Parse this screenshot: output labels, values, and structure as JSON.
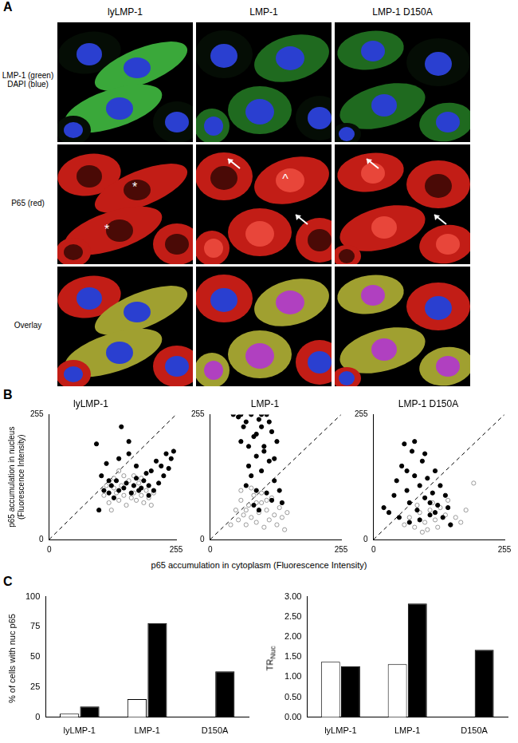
{
  "panel_labels": [
    "A",
    "B",
    "C"
  ],
  "image_panel": {
    "columns": [
      "lyLMP-1",
      "LMP-1",
      "LMP-1 D150A"
    ],
    "rows": [
      [
        "LMP-1 (green)",
        "DAPI (blue)"
      ],
      [
        "P65 (red)"
      ],
      [
        "Overlay"
      ]
    ],
    "annotations": [
      {
        "row": 1,
        "column": 0,
        "text": "*"
      },
      {
        "row": 1,
        "column": 0,
        "text": "*"
      },
      {
        "row": 1,
        "column": 1,
        "text": "^"
      }
    ]
  },
  "chart_data": [
    {
      "type": "scatter",
      "title": "lyLMP-1",
      "ylabel": [
        "p65 accumulation in nucleus",
        "(Fluorescence Intensity)"
      ],
      "xlim": [
        0,
        255
      ],
      "ylim": [
        0,
        255
      ],
      "xticks": [
        0,
        255
      ],
      "yticks": [
        0,
        255
      ],
      "grid": false,
      "series": [
        {
          "color": "#000000",
          "marker": "filled_circle",
          "x": [
            95,
            100,
            105,
            115,
            120,
            125,
            130,
            135,
            140,
            145,
            150,
            155,
            160,
            165,
            170,
            175,
            180,
            185,
            190,
            195,
            200,
            205,
            210,
            215,
            220,
            225,
            230,
            235,
            240,
            245,
            250,
            160,
            140,
            175,
            200,
            120,
            110
          ],
          "y": [
            195,
            60,
            130,
            155,
            95,
            110,
            85,
            120,
            100,
            230,
            105,
            115,
            200,
            95,
            110,
            125,
            100,
            105,
            120,
            135,
            110,
            140,
            100,
            160,
            115,
            150,
            130,
            175,
            145,
            165,
            180,
            175,
            165,
            150,
            90,
            120,
            100
          ]
        },
        {
          "color": "#999999",
          "marker": "open_circle",
          "x": [
            110,
            120,
            130,
            135,
            140,
            145,
            150,
            155,
            160,
            165,
            170,
            175,
            180,
            185,
            190,
            195,
            200,
            205,
            210,
            130,
            150,
            115,
            170,
            140,
            185,
            125
          ],
          "y": [
            90,
            75,
            105,
            95,
            80,
            110,
            90,
            70,
            120,
            85,
            95,
            80,
            115,
            90,
            75,
            100,
            85,
            70,
            95,
            125,
            130,
            110,
            130,
            140,
            125,
            60
          ]
        },
        {
          "type": "line",
          "line_style": "dashed",
          "color": "#000000",
          "x": [
            0,
            255
          ],
          "y": [
            0,
            255
          ]
        }
      ]
    },
    {
      "type": "scatter",
      "title": "LMP-1",
      "xlabel": "p65 accumulation in cytoplasm (Fluorescence Intensity)",
      "xlim": [
        0,
        255
      ],
      "ylim": [
        0,
        255
      ],
      "xticks": [
        0,
        255
      ],
      "yticks": [
        0,
        255
      ],
      "grid": false,
      "series": [
        {
          "color": "#000000",
          "marker": "filled_circle",
          "x": [
            45,
            55,
            60,
            70,
            75,
            80,
            85,
            90,
            95,
            100,
            105,
            110,
            115,
            120,
            125,
            130,
            70,
            80,
            90,
            100,
            110,
            120,
            85,
            95,
            105,
            75,
            65,
            115,
            125,
            135,
            140,
            60,
            100,
            90
          ],
          "y": [
            255,
            250,
            200,
            240,
            150,
            255,
            210,
            170,
            245,
            230,
            190,
            255,
            160,
            220,
            120,
            200,
            110,
            130,
            100,
            140,
            95,
            80,
            70,
            60,
            180,
            190,
            230,
            240,
            165,
            100,
            75,
            255,
            255,
            215
          ]
        },
        {
          "color": "#999999",
          "marker": "open_circle",
          "x": [
            40,
            50,
            55,
            60,
            65,
            70,
            75,
            80,
            85,
            90,
            95,
            100,
            105,
            110,
            115,
            120,
            125,
            130,
            135,
            140,
            145,
            150,
            60,
            80,
            100,
            70,
            90,
            110
          ],
          "y": [
            30,
            60,
            40,
            80,
            50,
            30,
            70,
            45,
            90,
            35,
            55,
            75,
            25,
            60,
            40,
            85,
            50,
            30,
            65,
            45,
            20,
            55,
            100,
            105,
            95,
            60,
            75,
            80
          ]
        },
        {
          "type": "line",
          "line_style": "dashed",
          "color": "#000000",
          "x": [
            0,
            255
          ],
          "y": [
            0,
            255
          ]
        }
      ]
    },
    {
      "type": "scatter",
      "title": "LMP-1 D150A",
      "xlim": [
        0,
        255
      ],
      "ylim": [
        0,
        255
      ],
      "xticks": [
        0,
        255
      ],
      "yticks": [
        0,
        255
      ],
      "grid": false,
      "series": [
        {
          "color": "#000000",
          "marker": "filled_circle",
          "x": [
            20,
            30,
            40,
            45,
            50,
            55,
            60,
            65,
            70,
            75,
            80,
            85,
            90,
            95,
            100,
            105,
            110,
            115,
            120,
            125,
            130,
            135,
            140,
            145,
            150,
            80,
            100,
            65,
            90,
            110,
            70,
            120
          ],
          "y": [
            65,
            55,
            90,
            120,
            45,
            150,
            195,
            100,
            75,
            180,
            130,
            60,
            110,
            160,
            85,
            125,
            50,
            95,
            140,
            70,
            110,
            45,
            90,
            65,
            30,
            200,
            175,
            140,
            40,
            75,
            35,
            55
          ]
        },
        {
          "color": "#999999",
          "marker": "open_circle",
          "x": [
            60,
            70,
            80,
            90,
            100,
            110,
            120,
            130,
            140,
            150,
            160,
            170,
            180,
            195,
            85,
            105,
            125,
            145,
            95,
            115
          ],
          "y": [
            30,
            45,
            25,
            55,
            35,
            60,
            40,
            65,
            50,
            30,
            45,
            35,
            60,
            115,
            70,
            20,
            25,
            80,
            15,
            75
          ]
        },
        {
          "type": "line",
          "line_style": "dashed",
          "color": "#000000",
          "x": [
            0,
            255
          ],
          "y": [
            0,
            255
          ]
        }
      ]
    },
    {
      "type": "bar",
      "categories": [
        "lyLMP-1",
        "LMP-1",
        "D150A"
      ],
      "ylabel": "% of cells with nuc p65",
      "ylim": [
        0,
        100
      ],
      "yticks": [
        0,
        25,
        50,
        75,
        100
      ],
      "grid": false,
      "series": [
        {
          "color": "#ffffff",
          "values": [
            3,
            15,
            null
          ]
        },
        {
          "color": "#000000",
          "values": [
            9,
            78,
            38
          ]
        }
      ]
    },
    {
      "type": "bar",
      "categories": [
        "lyLMP-1",
        "LMP-1",
        "D150A"
      ],
      "ylabel": {
        "text": "TR",
        "subscript": "Nuc"
      },
      "ylim": [
        0,
        3
      ],
      "yticks": [
        {
          "value": 0,
          "label": "0.00"
        },
        {
          "value": 0.5,
          "label": "0.50"
        },
        {
          "value": 1,
          "label": "1.00"
        },
        {
          "value": 1.5,
          "label": "1.50"
        },
        {
          "value": 2,
          "label": "2.00"
        },
        {
          "value": 2.5,
          "label": "2.50"
        },
        {
          "value": 3,
          "label": "3.00"
        }
      ],
      "grid": false,
      "series": [
        {
          "color": "#ffffff",
          "values": [
            1.38,
            1.32,
            null
          ]
        },
        {
          "color": "#000000",
          "values": [
            1.27,
            2.83,
            1.68
          ]
        }
      ]
    }
  ]
}
